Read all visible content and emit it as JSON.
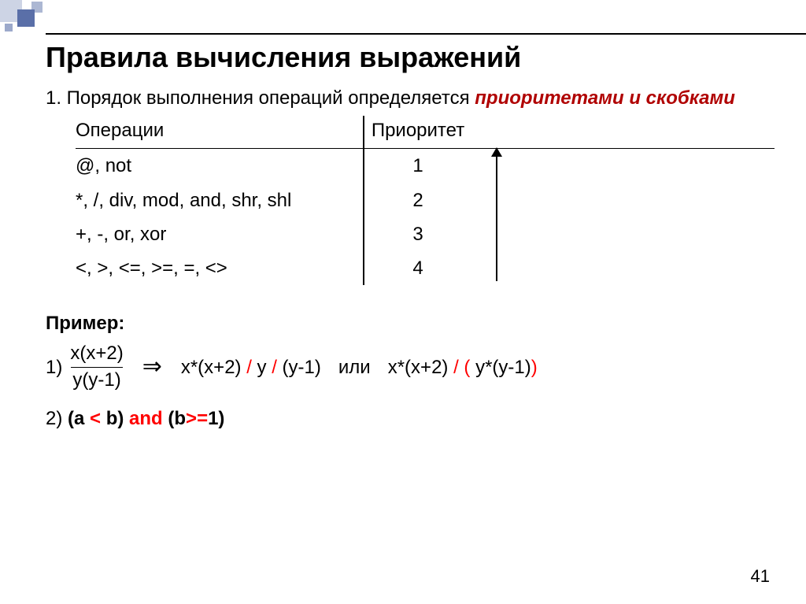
{
  "title": "Правила вычисления выражений",
  "intro_prefix": "1. Порядок выполнения операций определяется ",
  "intro_highlight": "приоритетами и скобками",
  "table": {
    "header_ops": "Операции",
    "header_pri": "Приоритет",
    "rows": [
      {
        "ops": "@, not",
        "pri": "1"
      },
      {
        "ops": "*, /, div, mod, and, shr, shl",
        "pri": "2"
      },
      {
        "ops": "+, -, or, xor",
        "pri": "3"
      },
      {
        "ops": "<, >, <=, >=, =, <>",
        "pri": "4"
      }
    ]
  },
  "example_label": "Пример:",
  "ex1_marker": "1)",
  "ex1_numerator": "x(x+2)",
  "ex1_denominator": "y(y-1)",
  "arrow_glyph": "⇒",
  "ex1_expr1_a": "x*(x+2) ",
  "ex1_expr1_b": "/",
  "ex1_expr1_c": " y ",
  "ex1_expr1_d": "/",
  "ex1_expr1_e": " (y-1)",
  "ex1_sep": "или",
  "ex1_expr2_a": "x*(x+2) ",
  "ex1_expr2_b": "/",
  "ex1_expr2_c": " ",
  "ex1_expr2_d": "(",
  "ex1_expr2_e": " y*(y-1)",
  "ex1_expr2_f": ")",
  "ex2_prefix": "2) ",
  "ex2_p1": "(a ",
  "ex2_lt": "<",
  "ex2_p2": " b) ",
  "ex2_and": "and",
  "ex2_p3": " (b",
  "ex2_ge": ">=",
  "ex2_p4": "1)",
  "page_number": "41",
  "colors": {
    "highlight": "#b00000",
    "red": "#ff0000",
    "accent": "#5a6fa8",
    "text": "#000000",
    "background": "#ffffff"
  },
  "fontsizes": {
    "title": 36,
    "body": 24,
    "pagenum": 22
  }
}
